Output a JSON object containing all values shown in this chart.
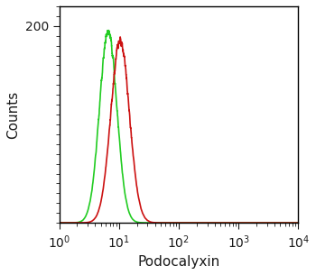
{
  "xlabel": "Podocalyxin",
  "ylabel": "Counts",
  "ylim": [
    0,
    220
  ],
  "green_peak_log": 0.82,
  "green_sigma_log": 0.145,
  "green_amplitude": 195,
  "red_peak_log": 1.02,
  "red_sigma_log": 0.155,
  "red_amplitude": 185,
  "green_color": "#22cc22",
  "red_color": "#cc1111",
  "bg_color": "#ffffff",
  "fig_bg_color": "#ffffff",
  "line_width": 1.2,
  "xlabel_color": "#1a1a1a",
  "xtick_color": "#1a1a1a",
  "ytick_color": "#1a1a1a",
  "noise_seed": 42,
  "noise_scale": 6.0,
  "noise_smooth": 8
}
